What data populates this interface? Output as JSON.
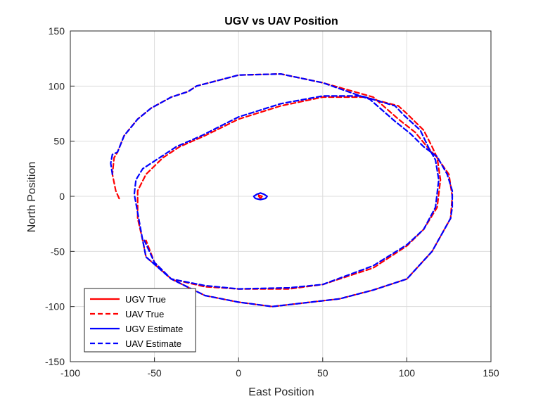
{
  "chart_data": {
    "type": "line",
    "title": "UGV vs UAV Position",
    "xlabel": "East Position",
    "ylabel": "North Position",
    "xlim": [
      -100,
      150
    ],
    "ylim": [
      -150,
      150
    ],
    "xticks": [
      -100,
      -50,
      0,
      50,
      100,
      150
    ],
    "yticks": [
      -150,
      -100,
      -50,
      0,
      50,
      100,
      150
    ],
    "grid": true,
    "legend_position": "bottom-left",
    "series": [
      {
        "name": "UGV True",
        "color": "#ff0000",
        "style": "solid",
        "x": [
          12,
          14,
          13,
          12,
          12
        ],
        "y": [
          1,
          0,
          -2,
          0,
          1
        ]
      },
      {
        "name": "UAV True",
        "color": "#ff0000",
        "style": "dashed",
        "x": [
          -71,
          -73,
          -75,
          -74,
          -72,
          -68,
          -60,
          -52,
          -40,
          -30,
          -25,
          0,
          25,
          50,
          80,
          95,
          105,
          112,
          118,
          125,
          127,
          126,
          115,
          100,
          80,
          60,
          20,
          0,
          -20,
          -40,
          -55,
          -57,
          -60,
          -60,
          -55,
          -45,
          -35,
          -20,
          0,
          25,
          50,
          75,
          95,
          100,
          110,
          115,
          118,
          120,
          118,
          110,
          100,
          80,
          50,
          30,
          0,
          -20,
          -40,
          -50,
          -55
        ],
        "y": [
          -2,
          5,
          20,
          35,
          40,
          55,
          70,
          80,
          90,
          95,
          100,
          110,
          111,
          103,
          90,
          70,
          58,
          45,
          35,
          20,
          0,
          -20,
          -50,
          -75,
          -85,
          -93,
          -100,
          -96,
          -90,
          -75,
          -55,
          -40,
          -20,
          5,
          20,
          35,
          45,
          55,
          70,
          82,
          90,
          90,
          82,
          75,
          60,
          45,
          35,
          15,
          -10,
          -30,
          -45,
          -65,
          -80,
          -84,
          -84,
          -82,
          -75,
          -60,
          -40
        ]
      },
      {
        "name": "UGV Estimate",
        "color": "#0000ff",
        "style": "solid",
        "x": [
          9,
          11,
          13,
          15,
          17,
          16,
          13,
          10,
          9
        ],
        "y": [
          0,
          2,
          3,
          2,
          0,
          -2,
          -3,
          -2,
          0
        ]
      },
      {
        "name": "UAV Estimate",
        "color": "#0000ff",
        "style": "dashed",
        "x": [
          -75,
          -76,
          -75,
          -72,
          -68,
          -60,
          -52,
          -40,
          -30,
          -25,
          0,
          25,
          50,
          78,
          93,
          102,
          110,
          118,
          124,
          127,
          127,
          126,
          115,
          100,
          80,
          60,
          20,
          0,
          -20,
          -40,
          -55,
          -57,
          -62,
          -61,
          -57,
          -47,
          -37,
          -22,
          0,
          25,
          50,
          73,
          93,
          98,
          108,
          113,
          117,
          119,
          117,
          110,
          100,
          80,
          50,
          30,
          0,
          -20,
          -40,
          -50,
          -56
        ],
        "y": [
          20,
          30,
          38,
          40,
          55,
          70,
          80,
          90,
          95,
          100,
          110,
          111,
          103,
          88,
          68,
          57,
          45,
          36,
          20,
          5,
          -10,
          -20,
          -50,
          -75,
          -85,
          -93,
          -100,
          -96,
          -90,
          -75,
          -55,
          -40,
          2,
          15,
          25,
          35,
          45,
          55,
          72,
          84,
          91,
          91,
          82,
          74,
          60,
          44,
          33,
          15,
          -10,
          -30,
          -44,
          -63,
          -80,
          -83,
          -84,
          -81,
          -75,
          -60,
          -40
        ]
      }
    ]
  }
}
